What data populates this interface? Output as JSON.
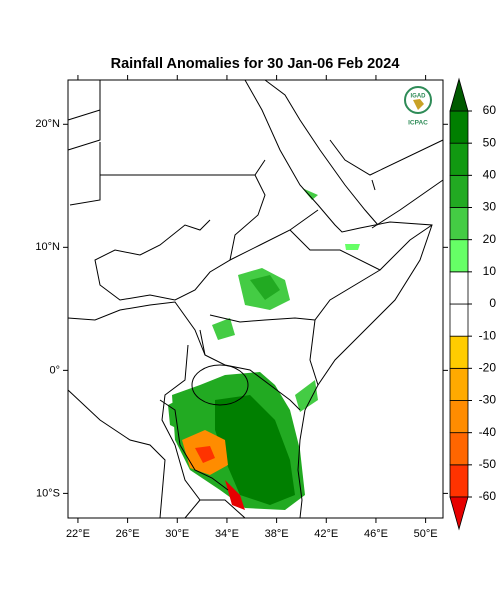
{
  "title": "Rainfall Anomalies for 30 Jan-06 Feb 2024",
  "map": {
    "lonlim": [
      21.2,
      51.4
    ],
    "latlim": [
      -12,
      23.6
    ],
    "lon_ticks": [
      {
        "value": 22,
        "label": "22°E"
      },
      {
        "value": 26,
        "label": "26°E"
      },
      {
        "value": 30,
        "label": "30°E"
      },
      {
        "value": 34,
        "label": "34°E"
      },
      {
        "value": 38,
        "label": "38°E"
      },
      {
        "value": 42,
        "label": "42°E"
      },
      {
        "value": 46,
        "label": "46°E"
      },
      {
        "value": 50,
        "label": "50°E"
      }
    ],
    "lat_ticks": [
      {
        "value": 20,
        "label": "20°N"
      },
      {
        "value": 10,
        "label": "10°N"
      },
      {
        "value": 0,
        "label": "0°"
      },
      {
        "value": -10,
        "label": "10°S"
      }
    ]
  },
  "colorbar": {
    "levels": [
      -60,
      -50,
      -40,
      -30,
      -20,
      -10,
      0,
      10,
      20,
      30,
      40,
      50,
      60
    ],
    "colors": [
      "#e60000",
      "#ff3300",
      "#ff6600",
      "#ff8c00",
      "#ffaa00",
      "#ffcc00",
      "#ffffff",
      "#ffffff",
      "#66ff66",
      "#44cc44",
      "#22aa22",
      "#119911",
      "#007f00",
      "#005a00"
    ]
  },
  "logo": {
    "name": "IGAD",
    "org": "ICPAC"
  }
}
